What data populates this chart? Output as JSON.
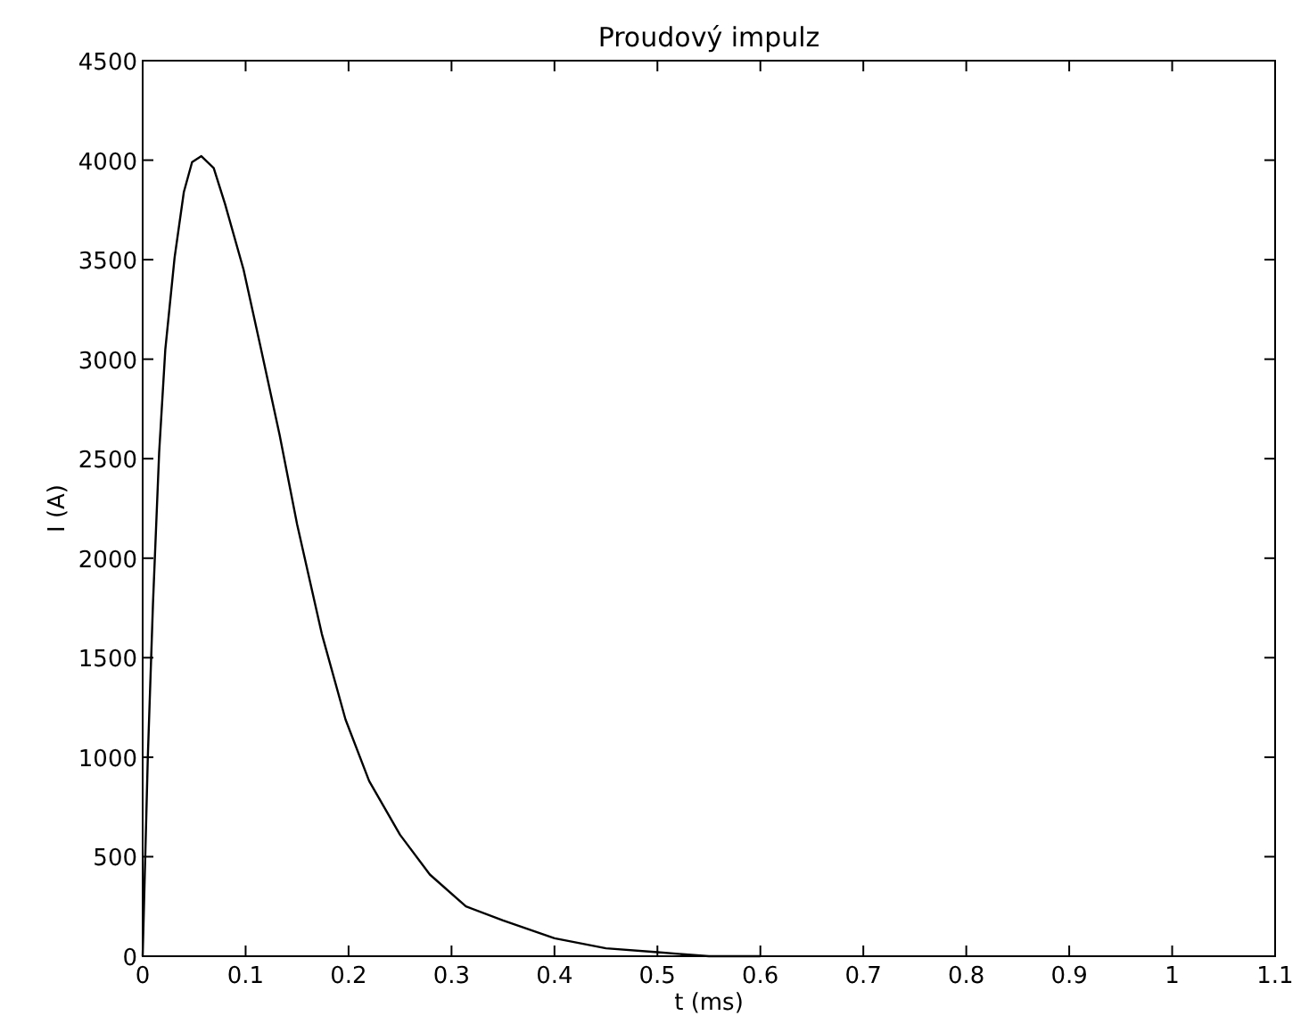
{
  "chart_data": {
    "type": "line",
    "title": "Proudový impulz",
    "xlabel": "t (ms)",
    "ylabel": "I (A)",
    "x": [
      0,
      0.005,
      0.01,
      0.016,
      0.022,
      0.031,
      0.04,
      0.048,
      0.057,
      0.069,
      0.08,
      0.098,
      0.115,
      0.133,
      0.15,
      0.174,
      0.197,
      0.22,
      0.25,
      0.279,
      0.314,
      0.35,
      0.4,
      0.45,
      0.5,
      0.55,
      0.6
    ],
    "series": [
      {
        "color": "#000000",
        "values": [
          0,
          1000,
          1770,
          2530,
          3050,
          3510,
          3840,
          3990,
          4020,
          3960,
          3780,
          3450,
          3050,
          2620,
          2170,
          1620,
          1190,
          880,
          610,
          410,
          250,
          180,
          90,
          40,
          20,
          0,
          0
        ]
      }
    ],
    "xlim": [
      0,
      1.1
    ],
    "xticks": [
      0,
      0.1,
      0.2,
      0.3,
      0.4,
      0.5,
      0.6,
      0.7,
      0.8,
      0.9,
      1,
      1.1
    ],
    "ylim": [
      0,
      4500
    ],
    "yticks": [
      0,
      500,
      1000,
      1500,
      2000,
      2500,
      3000,
      3500,
      4000,
      4500
    ],
    "grid": false,
    "marker": "none",
    "line_style": "solid"
  }
}
